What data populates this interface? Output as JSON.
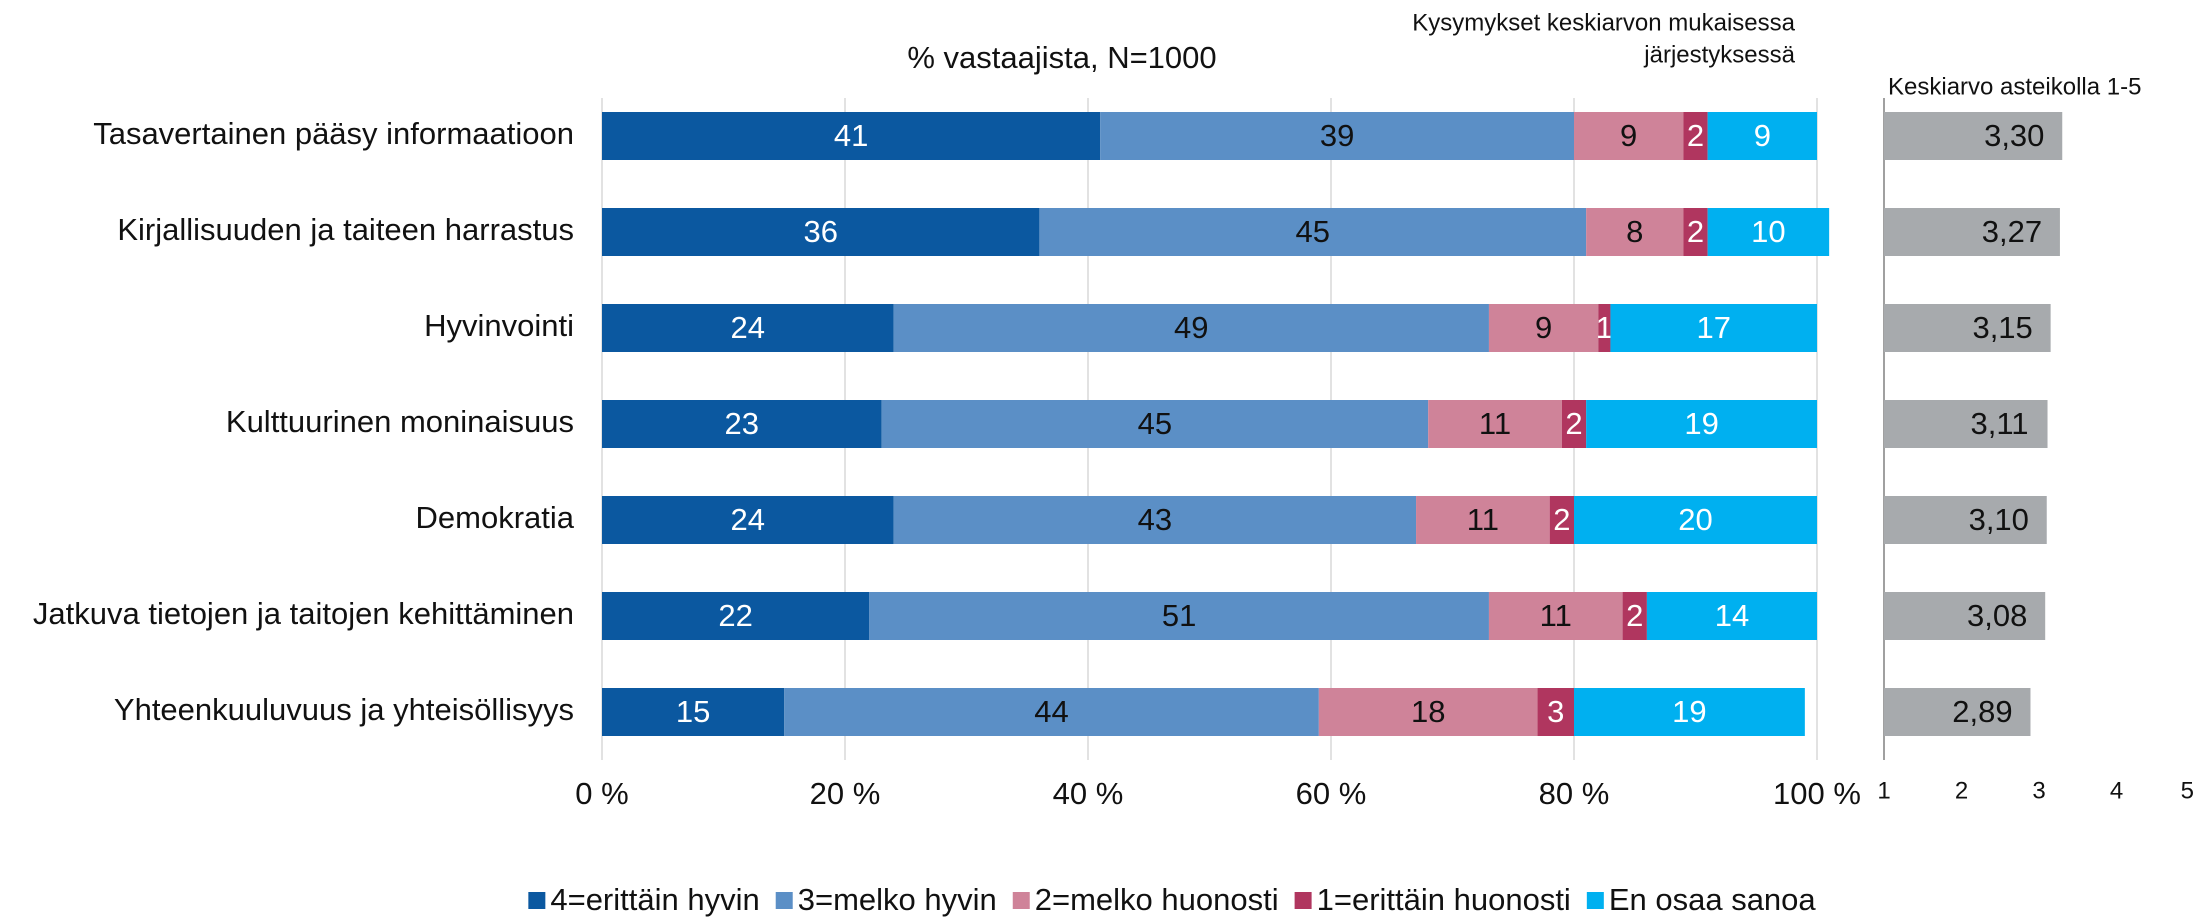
{
  "chart_data": [
    {
      "type": "stacked-bar-horizontal",
      "title": "% vastaajista, N=1000",
      "subtitle": [
        "Kysymykset keskiarvon mukaisessa",
        "järjestyksessä"
      ],
      "categories": [
        "Tasavertainen pääsy informaatioon",
        "Kirjallisuuden ja taiteen harrastus",
        "Hyvinvointi",
        "Kulttuurinen moninaisuus",
        "Demokratia",
        "Jatkuva tietojen ja taitojen kehittäminen",
        "Yhteenkuuluvuus ja yhteisöllisyys"
      ],
      "series": [
        {
          "name": "4=erittäin hyvin",
          "color": "#0b58a0",
          "label_color": "#ffffff",
          "values": [
            41,
            36,
            24,
            23,
            24,
            22,
            15
          ]
        },
        {
          "name": "3=melko hyvin",
          "color": "#5b8fc6",
          "label_color": "#111111",
          "values": [
            39,
            45,
            49,
            45,
            43,
            51,
            44
          ]
        },
        {
          "name": "2=melko huonosti",
          "color": "#cf8399",
          "label_color": "#111111",
          "values": [
            9,
            8,
            9,
            11,
            11,
            11,
            18
          ]
        },
        {
          "name": "1=erittäin huonosti",
          "color": "#b0365f",
          "label_color": "#ffffff",
          "values": [
            2,
            2,
            1,
            2,
            2,
            2,
            3
          ]
        },
        {
          "name": "En osaa sanoa",
          "color": "#00b0f0",
          "label_color": "#ffffff",
          "values": [
            9,
            10,
            17,
            19,
            20,
            14,
            19
          ]
        }
      ],
      "xlim": [
        0,
        100
      ],
      "xticks": [
        {
          "value": 0,
          "label": "0 %"
        },
        {
          "value": 20,
          "label": "20 %"
        },
        {
          "value": 40,
          "label": "40 %"
        },
        {
          "value": 60,
          "label": "60 %"
        },
        {
          "value": 80,
          "label": "80 %"
        },
        {
          "value": 100,
          "label": "100 %"
        }
      ],
      "grid": true,
      "legend": "bottom"
    },
    {
      "type": "bar-horizontal",
      "title": "Keskiarvo asteikolla 1-5",
      "values": [
        3.3,
        3.27,
        3.15,
        3.11,
        3.1,
        3.08,
        2.89
      ],
      "value_labels": [
        "3,30",
        "3,27",
        "3,15",
        "3,11",
        "3,10",
        "3,08",
        "2,89"
      ],
      "color": "#a7aaad",
      "xlim": [
        1,
        5
      ],
      "xticks": [
        1,
        2,
        3,
        4,
        5
      ]
    }
  ]
}
